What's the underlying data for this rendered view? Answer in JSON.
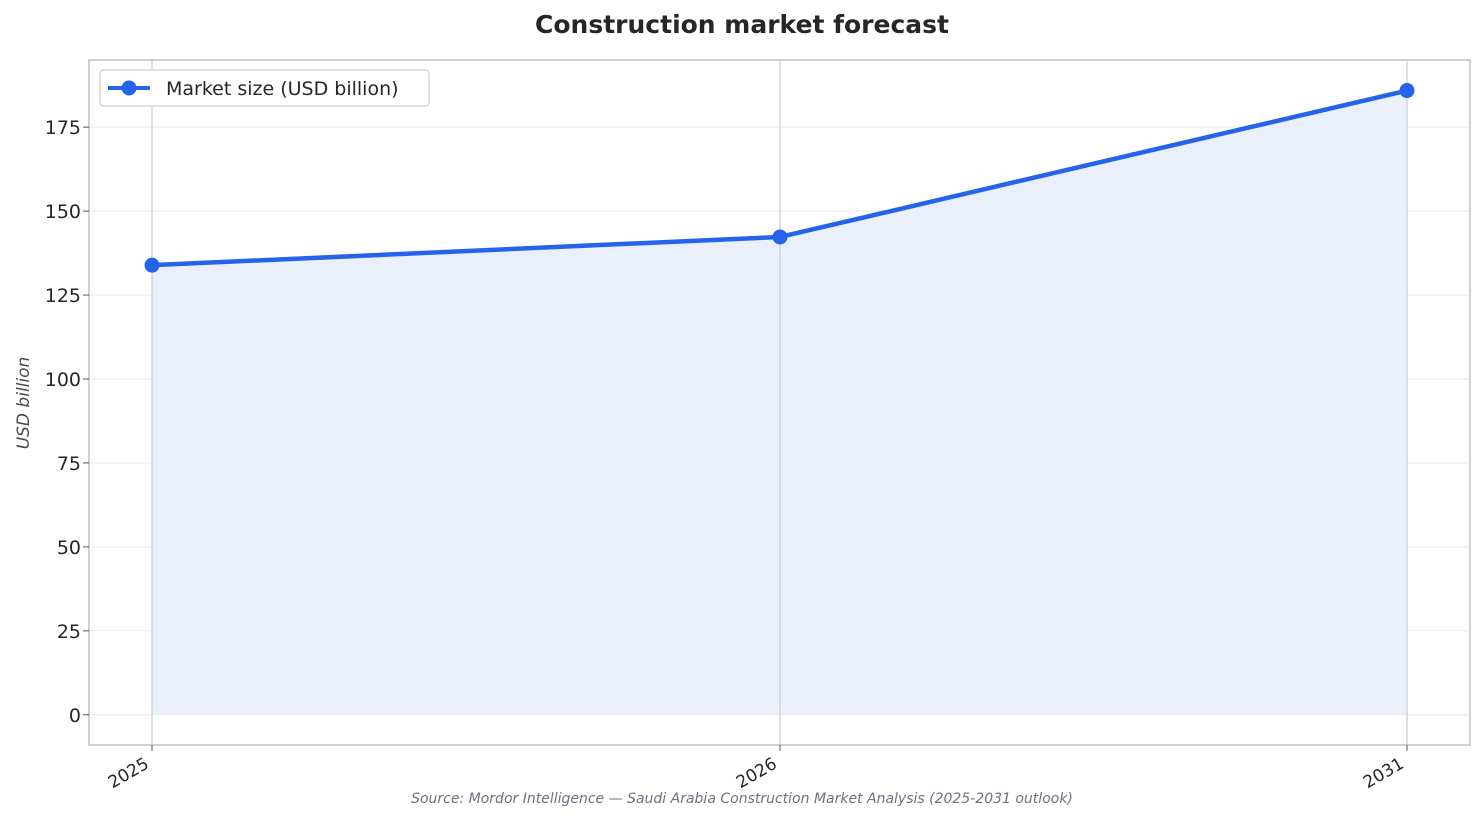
{
  "chart_data": {
    "type": "line",
    "title": "Construction market forecast",
    "xlabel": "",
    "ylabel": "USD billion",
    "categories": [
      "2025",
      "2026",
      "2031"
    ],
    "series": [
      {
        "name": "Market size (USD billion)",
        "values": [
          133.9,
          142.3,
          185.9
        ]
      }
    ],
    "ylim": [
      -9,
      195
    ],
    "yticks": [
      0,
      25,
      50,
      75,
      100,
      125,
      150,
      175
    ],
    "grid": true,
    "area_fill": true,
    "legend_position": "top-left",
    "colors": {
      "line": "#2563eb",
      "fill": "#e9effb",
      "grid": "#ebebeb",
      "frame": "#c0c0c0"
    },
    "source": "Source: Mordor Intelligence — Saudi Arabia Construction Market Analysis (2025-2031 outlook)"
  }
}
